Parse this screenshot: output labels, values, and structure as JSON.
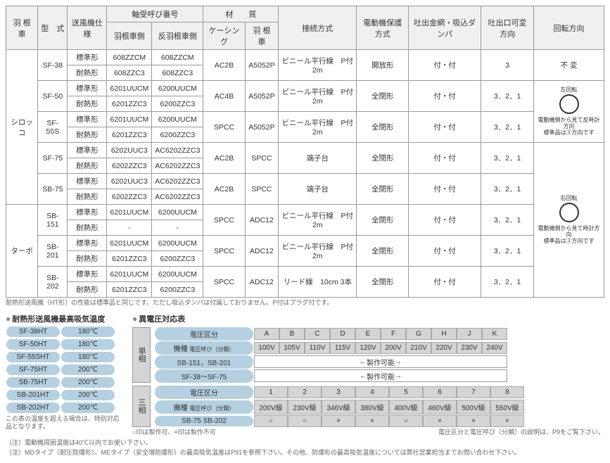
{
  "main_headers": {
    "col1": "羽 根 車",
    "col2": "型　式",
    "col3": "送風機仕様",
    "bearing": "軸受呼び番号",
    "bearing_sub1": "羽根車側",
    "bearing_sub2": "反羽根車側",
    "material": "材　　質",
    "mat_sub1": "ケーシング",
    "mat_sub2": "羽 根 車",
    "connect": "接続方式",
    "motor": "電動機保護方式",
    "damper": "吐出金網",
    "damper2": "吸込ダンパ",
    "outlet": "吐出口可変方向",
    "rotation": "回転方向"
  },
  "sirocco_label": "シロッコ",
  "turbo_label": "ターボ",
  "rows": [
    {
      "model": "SF-38",
      "spec": "標準形",
      "b1": "608ZZCM",
      "b2": "608ZZCM",
      "casing": "AC2B",
      "impeller": "A5052P",
      "conn": "ビニール平行線　P付 2m",
      "motor": "開放形",
      "damp": "付・付",
      "out": "3",
      "rot": "不 変",
      "rs": 1
    },
    {
      "model": "",
      "spec": "耐熱形",
      "b1": "608ZZC3",
      "b2": "608ZZC3"
    },
    {
      "model": "SF-50",
      "spec": "標準形",
      "b1": "6201UUCM",
      "b2": "6200UUCM",
      "casing": "AC4B",
      "impeller": "A5052P",
      "conn": "ビニール平行線　P付 2m",
      "motor": "全閉形",
      "damp": "付・付",
      "out": "3．2．1",
      "rot": "rot1",
      "rs": 1
    },
    {
      "model": "",
      "spec": "耐熱形",
      "b1": "6201ZZC3",
      "b2": "6200ZZC3"
    },
    {
      "model": "SF-55S",
      "spec": "標準形",
      "b1": "6201UUCM",
      "b2": "6200UUCM",
      "casing": "SPCC",
      "impeller": "A5052P",
      "conn": "ビニール平行線　P付 2m",
      "motor": "全閉形",
      "damp": "付・付",
      "out": "3．2．1",
      "rs": 1
    },
    {
      "model": "",
      "spec": "耐熱形",
      "b1": "6201ZZC3",
      "b2": "6200ZZC3"
    },
    {
      "model": "SF-75",
      "spec": "標準形",
      "b1": "6202UUC3",
      "b2": "AC6202ZZC3",
      "casing": "AC2B",
      "impeller": "SPCC",
      "conn": "端子台",
      "motor": "全閉形",
      "damp": "付・付",
      "out": "3．2．1",
      "rs": 1
    },
    {
      "model": "",
      "spec": "耐熱形",
      "b1": "6202ZZC3",
      "b2": "AC6202ZZC3"
    },
    {
      "model": "SB-75",
      "spec": "標準形",
      "b1": "6202UUC3",
      "b2": "AC6202ZZC3",
      "casing": "AC2B",
      "impeller": "SPCC",
      "conn": "端子台",
      "motor": "全閉形",
      "damp": "付・付",
      "out": "3．2．1",
      "rs": 1
    },
    {
      "model": "",
      "spec": "耐熱形",
      "b1": "6202ZZC3",
      "b2": "AC6202ZZC3"
    },
    {
      "model": "SB-151",
      "spec": "標準形",
      "b1": "6201UUCM",
      "b2": "6200UUCM",
      "casing": "SPCC",
      "impeller": "ADC12",
      "conn": "ビニール平行線　P付 2m",
      "motor": "全閉形",
      "damp": "付・付",
      "out": "3．2．1",
      "rs": 1
    },
    {
      "model": "",
      "spec": "耐熱形",
      "b1": "-",
      "b2": "-"
    },
    {
      "model": "SB-201",
      "spec": "標準形",
      "b1": "6201UUCM",
      "b2": "6200UUCM",
      "casing": "SPCC",
      "impeller": "ADC12",
      "conn": "ビニール平行線　P付 2m",
      "motor": "全閉形",
      "damp": "付・付",
      "out": "3．2．1",
      "rs": 1
    },
    {
      "model": "",
      "spec": "耐熱形",
      "b1": "6201ZZC3",
      "b2": "6200ZZC3"
    },
    {
      "model": "SB-202",
      "spec": "標準形",
      "b1": "6201UUCM",
      "b2": "6200UUCM",
      "casing": "SPCC",
      "impeller": "ADC12",
      "conn": "リード線　10cm 3本",
      "motor": "全閉形",
      "damp": "付・付",
      "out": "3．2．1",
      "rs": 1
    },
    {
      "model": "",
      "spec": "耐熱形",
      "b1": "6201ZZC3",
      "b2": "6200ZZC3"
    }
  ],
  "note_main": "耐熱形送風機（HT形）の性能は標準品と同じです。ただし吸込ダンパは付属しておりません。P付はプラグ付です。",
  "heat_title": "耐熱形送風機最高吸気温度",
  "volt_title": "異電圧対応表",
  "heat_rows": [
    {
      "m": "SF-38HT",
      "t": "180℃"
    },
    {
      "m": "SF-50HT",
      "t": "180℃"
    },
    {
      "m": "SF-55SHT",
      "t": "180℃"
    },
    {
      "m": "SF-75HT",
      "t": "200℃"
    },
    {
      "m": "SB-75HT",
      "t": "200℃"
    },
    {
      "m": "SB-201HT",
      "t": "200℃"
    },
    {
      "m": "SB-202HT",
      "t": "200℃"
    }
  ],
  "heat_note": "この表の温度を超える場合は、特別対応品となります。",
  "phase1": "単相",
  "phase2": "三相",
  "volt_div": "電圧区分",
  "volt_kw": "機種",
  "volt_call": "電圧呼び（分類）",
  "single_cols": [
    "A",
    "B",
    "C",
    "D",
    "E",
    "F",
    "G",
    "H",
    "J",
    "K"
  ],
  "single_volts": [
    "100V",
    "105V",
    "110V",
    "115V",
    "120V",
    "200V",
    "210V",
    "220V",
    "230V",
    "240V"
  ],
  "single_m1": "SB-151，SB-201",
  "single_m2": "SF-38～SF-75",
  "range_label": "製作可能",
  "three_cols": [
    "1",
    "2",
    "3",
    "4",
    "5",
    "6",
    "7",
    "8"
  ],
  "three_volts": [
    "200V級",
    "230V級",
    "346V級",
    "380V級",
    "400V級",
    "460V級",
    "500V級",
    "550V級"
  ],
  "three_m1": "SB-75 SB-202",
  "three_marks": [
    "○",
    "○",
    "×",
    "×",
    "○",
    "×",
    "×",
    "×"
  ],
  "mark_note": "○印は製作可、×印は製作不可",
  "volt_note": "電圧区分と電圧呼び（分類）の説明は、P9をご覧下さい。",
  "foot1": "（注）電動機周囲温度は40℃以内でお使い下さい。",
  "foot2": "（注）MDタイプ（耐圧防爆形）、MEタイプ（安全増防爆形）の最高吸気温度はP91を参照下さい。その他、防爆形の最高吸気温度については弊社営業担当までお問い合わせ下さい。",
  "rot1_top": "左回転",
  "rot1_bot": "電動機側から見て反時計方向",
  "rot1_std": "標準品は③方向です",
  "rot2_top": "右回転",
  "rot2_bot": "電動機側から見て時計方向",
  "rot2_std": "標準品は③方向です"
}
